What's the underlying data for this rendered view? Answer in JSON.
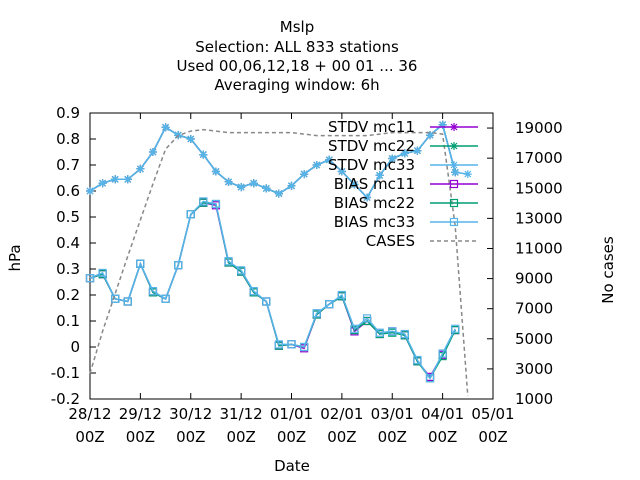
{
  "chart_data": {
    "type": "line",
    "title_lines": [
      "Mslp",
      "Selection: ALL    833 stations",
      "Used  00,06,12,18 + 00 01 ... 36",
      "Averaging window:  6h"
    ],
    "xlabel": "Date",
    "ylabel": "hPa",
    "y2label": "No cases",
    "x_ticks": [
      {
        "x": 0,
        "line1": "28/12",
        "line2": "00Z"
      },
      {
        "x": 1,
        "line1": "29/12",
        "line2": "00Z"
      },
      {
        "x": 2,
        "line1": "30/12",
        "line2": "00Z"
      },
      {
        "x": 3,
        "line1": "31/12",
        "line2": "00Z"
      },
      {
        "x": 4,
        "line1": "01/01",
        "line2": "00Z"
      },
      {
        "x": 5,
        "line1": "02/01",
        "line2": "00Z"
      },
      {
        "x": 6,
        "line1": "03/01",
        "line2": "00Z"
      },
      {
        "x": 7,
        "line1": "04/01",
        "line2": "00Z"
      },
      {
        "x": 8,
        "line1": "05/01",
        "line2": "00Z"
      }
    ],
    "xlim": [
      0,
      8
    ],
    "ylim": [
      -0.2,
      0.9
    ],
    "y2lim": [
      1000,
      20000
    ],
    "y_ticks": [
      "-0.2",
      "-0.1",
      "0",
      "0.1",
      "0.2",
      "0.3",
      "0.4",
      "0.5",
      "0.6",
      "0.7",
      "0.8",
      "0.9"
    ],
    "y2_ticks": [
      "1000",
      "3000",
      "5000",
      "7000",
      "9000",
      "11000",
      "13000",
      "15000",
      "17000",
      "19000"
    ],
    "x": [
      0.0,
      0.25,
      0.5,
      0.75,
      1.0,
      1.25,
      1.5,
      1.75,
      2.0,
      2.25,
      2.5,
      2.75,
      3.0,
      3.25,
      3.5,
      3.75,
      4.0,
      4.25,
      4.5,
      4.75,
      5.0,
      5.25,
      5.5,
      5.75,
      6.0,
      6.25,
      6.5,
      6.75,
      7.0,
      7.25,
      7.5
    ],
    "series": [
      {
        "name": "STDV mc11",
        "color": "#9400d3",
        "marker": "star",
        "axis": "y",
        "values": [
          0.6,
          0.63,
          0.645,
          0.645,
          0.685,
          0.75,
          0.845,
          0.815,
          0.8,
          0.74,
          0.675,
          0.635,
          0.615,
          0.63,
          0.61,
          0.59,
          0.62,
          0.665,
          0.7,
          0.72,
          0.675,
          0.625,
          0.575,
          0.66,
          0.725,
          0.745,
          0.755,
          0.815,
          0.855,
          0.672,
          null
        ]
      },
      {
        "name": "STDV mc22",
        "color": "#009e73",
        "marker": "star",
        "axis": "y",
        "values": [
          0.6,
          0.63,
          0.645,
          0.645,
          0.685,
          0.75,
          0.845,
          0.815,
          0.8,
          0.74,
          0.675,
          0.635,
          0.615,
          0.63,
          0.61,
          0.59,
          0.62,
          0.665,
          0.7,
          0.72,
          0.675,
          0.625,
          0.575,
          0.66,
          0.725,
          0.745,
          0.755,
          0.815,
          0.855,
          0.672,
          null
        ]
      },
      {
        "name": "STDV mc33",
        "color": "#56b4e9",
        "marker": "star",
        "axis": "y",
        "values": [
          0.6,
          0.63,
          0.645,
          0.645,
          0.685,
          0.75,
          0.845,
          0.815,
          0.8,
          0.74,
          0.675,
          0.635,
          0.615,
          0.63,
          0.61,
          0.59,
          0.62,
          0.665,
          0.7,
          0.72,
          0.675,
          0.625,
          0.575,
          0.66,
          0.725,
          0.745,
          0.755,
          0.815,
          0.855,
          0.672,
          0.665
        ]
      },
      {
        "name": "BIAS mc11",
        "color": "#9400d3",
        "marker": "square",
        "axis": "y",
        "values": [
          0.265,
          0.28,
          0.185,
          0.175,
          0.32,
          0.21,
          0.185,
          0.315,
          0.51,
          0.555,
          0.545,
          0.325,
          0.29,
          0.21,
          0.175,
          0.005,
          0.01,
          -0.005,
          0.125,
          0.165,
          0.195,
          0.06,
          0.1,
          0.05,
          0.06,
          0.045,
          -0.055,
          -0.115,
          -0.03,
          0.065,
          null
        ]
      },
      {
        "name": "BIAS mc22",
        "color": "#009e73",
        "marker": "square",
        "axis": "y",
        "values": [
          0.265,
          0.28,
          0.185,
          0.175,
          0.32,
          0.21,
          0.185,
          0.315,
          0.51,
          0.555,
          0.55,
          0.325,
          0.29,
          0.21,
          0.175,
          0.005,
          0.01,
          0.0,
          0.125,
          0.165,
          0.195,
          0.065,
          0.1,
          0.05,
          0.055,
          0.045,
          -0.055,
          -0.12,
          -0.035,
          0.065,
          null
        ]
      },
      {
        "name": "BIAS mc33",
        "color": "#56b4e9",
        "marker": "square",
        "axis": "y",
        "values": [
          0.265,
          0.285,
          0.185,
          0.175,
          0.32,
          0.215,
          0.185,
          0.315,
          0.51,
          0.56,
          0.55,
          0.33,
          0.295,
          0.215,
          0.175,
          0.01,
          0.01,
          0.0,
          0.13,
          0.165,
          0.2,
          0.07,
          0.11,
          0.055,
          0.06,
          0.05,
          -0.05,
          -0.12,
          -0.025,
          0.07,
          null
        ]
      },
      {
        "name": "CASES",
        "color": "#888888",
        "dash": true,
        "axis": "y2",
        "values": [
          2700,
          5500,
          8000,
          10500,
          12900,
          15300,
          17600,
          18500,
          18800,
          18900,
          18800,
          18700,
          18700,
          18700,
          18700,
          18700,
          18700,
          18600,
          18500,
          18500,
          18500,
          18500,
          18500,
          18600,
          18700,
          18700,
          18700,
          18700,
          18600,
          12500,
          1200
        ]
      }
    ]
  }
}
